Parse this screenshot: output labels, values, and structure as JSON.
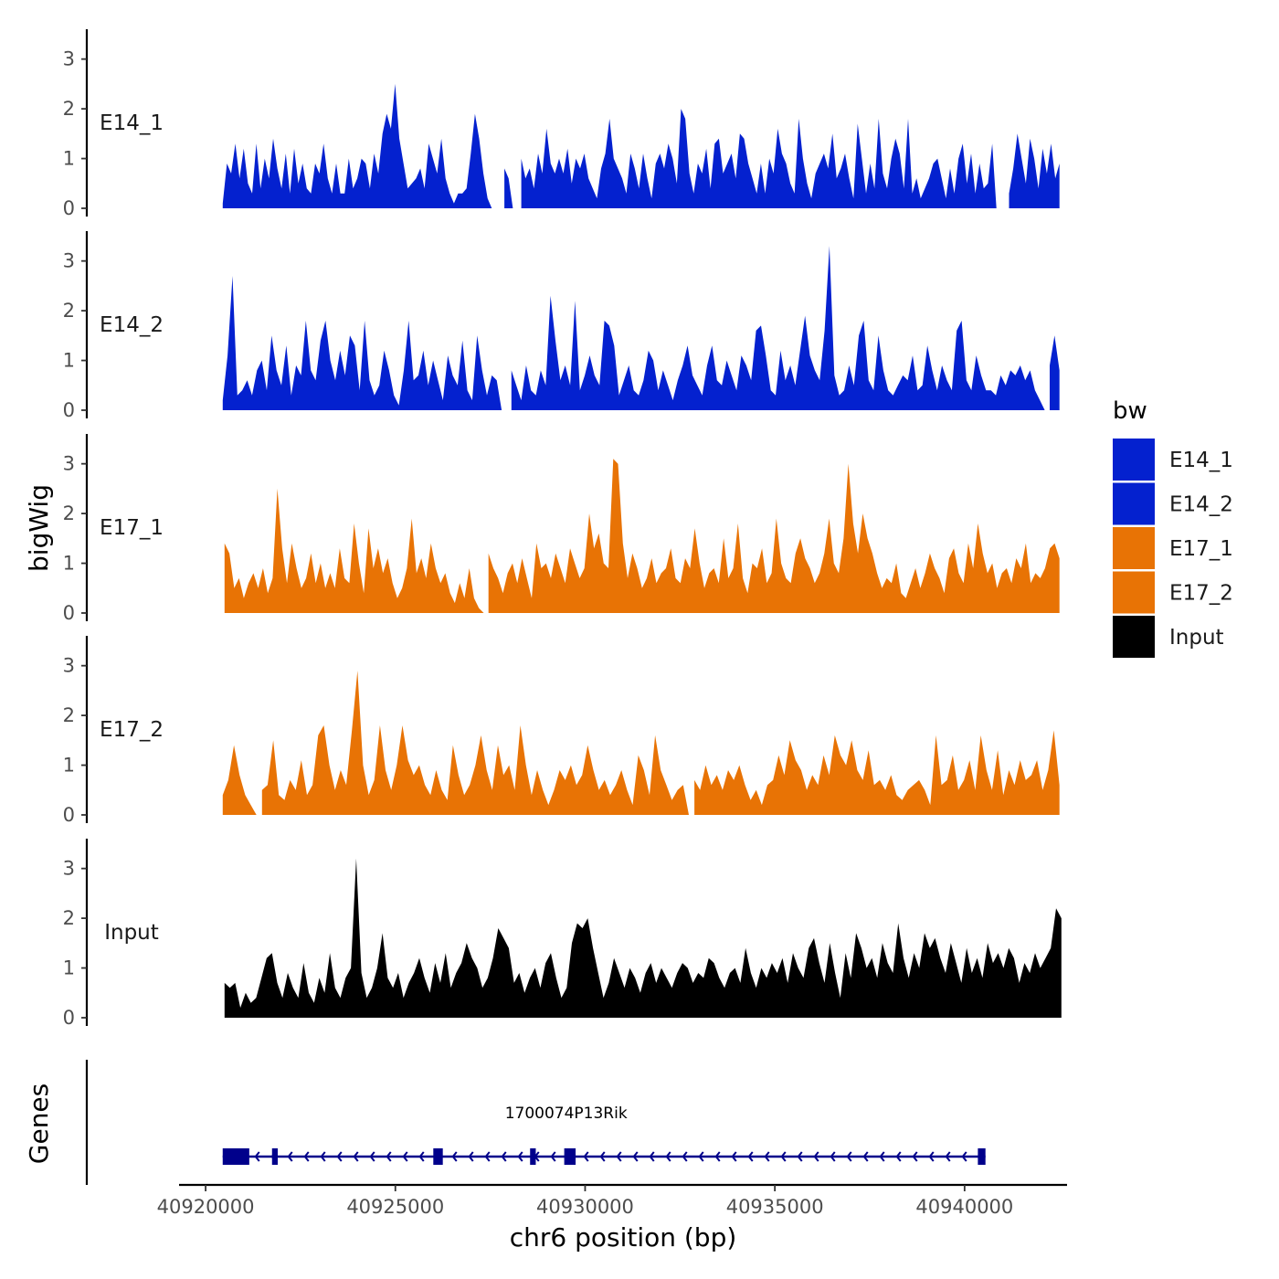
{
  "chart_data": {
    "type": "area",
    "chromosome": "chr6",
    "xlabel": "chr6 position (bp)",
    "ylabel": "bigWig",
    "genes_label": "Genes",
    "xlim": [
      40919300,
      40942700
    ],
    "ylim": [
      0,
      3.6
    ],
    "x_ticks": [
      40920000,
      40925000,
      40930000,
      40935000,
      40940000
    ],
    "x_tick_labels": [
      "40920000",
      "40925000",
      "40930000",
      "40935000",
      "40940000"
    ],
    "y_ticks": [
      0,
      1,
      2,
      3
    ],
    "y_tick_labels": [
      "0",
      "1",
      "2",
      "3"
    ],
    "legend": {
      "title": "bw",
      "entries": [
        {
          "name": "E14_1",
          "color": "#0421cf"
        },
        {
          "name": "E14_2",
          "color": "#0421cf"
        },
        {
          "name": "E17_1",
          "color": "#e87305"
        },
        {
          "name": "E17_2",
          "color": "#e87305"
        },
        {
          "name": "Input",
          "color": "#000000"
        }
      ]
    },
    "series": [
      {
        "name": "E14_1",
        "color": "#0421cf",
        "x_start": 40920450,
        "x_end": 40942500,
        "values": [
          0.1,
          0.9,
          0.7,
          1.3,
          0.6,
          1.2,
          0.5,
          0.3,
          1.3,
          0.4,
          1.0,
          0.6,
          1.4,
          0.8,
          0.4,
          1.1,
          0.3,
          1.2,
          0.5,
          0.9,
          0.4,
          0.3,
          0.9,
          0.7,
          1.3,
          0.6,
          0.3,
          0.9,
          0.3,
          0.3,
          1.0,
          0.4,
          0.6,
          1.0,
          0.9,
          0.4,
          1.1,
          0.7,
          1.5,
          1.9,
          1.6,
          2.5,
          1.4,
          0.9,
          0.4,
          0.5,
          0.6,
          0.8,
          0.4,
          1.3,
          1.0,
          0.7,
          1.4,
          0.6,
          0.3,
          0.1,
          0.3,
          0.3,
          0.4,
          1.1,
          1.9,
          1.4,
          0.7,
          0.2,
          0,
          0,
          0,
          0.8,
          0.6,
          0,
          0,
          1.0,
          0.6,
          0.8,
          0.4,
          1.1,
          0.7,
          1.6,
          0.9,
          0.7,
          1.0,
          0.7,
          1.2,
          0.5,
          1.0,
          0.8,
          1.1,
          0.6,
          0.4,
          0.2,
          0.8,
          1.1,
          1.8,
          1.0,
          0.8,
          0.6,
          0.3,
          1.1,
          0.8,
          0.4,
          1.1,
          0.6,
          0.2,
          0.9,
          1.1,
          0.8,
          1.3,
          1.0,
          0.5,
          2.0,
          1.8,
          0.7,
          0.3,
          0.9,
          0.7,
          1.2,
          0.4,
          1.3,
          1.4,
          0.7,
          0.9,
          1.1,
          0.6,
          1.5,
          1.4,
          0.9,
          0.6,
          0.3,
          0.9,
          0.3,
          1.0,
          0.7,
          1.6,
          1.1,
          0.9,
          0.5,
          0.3,
          1.8,
          1.0,
          0.5,
          0.2,
          0.7,
          0.9,
          1.1,
          0.8,
          1.5,
          0.6,
          0.8,
          1.1,
          0.6,
          0.2,
          1.7,
          1.0,
          0.3,
          0.9,
          0.4,
          1.8,
          0.7,
          0.4,
          1.0,
          1.4,
          1.1,
          0.4,
          1.8,
          0.3,
          0.6,
          0.2,
          0.4,
          0.6,
          0.9,
          1.0,
          0.6,
          0.2,
          0.8,
          0.3,
          1.0,
          1.3,
          0.5,
          1.1,
          0.3,
          0.9,
          0.4,
          0.5,
          1.3,
          0,
          0,
          0,
          0.3,
          0.8,
          1.5,
          1.0,
          0.5,
          1.4,
          1.0,
          0.4,
          1.2,
          0.7,
          1.3,
          0.6,
          0.9
        ]
      },
      {
        "name": "E14_2",
        "color": "#0421cf",
        "x_start": 40920450,
        "x_end": 40942500,
        "values": [
          0.2,
          1.1,
          2.7,
          0.3,
          0.4,
          0.6,
          0.3,
          0.8,
          1.0,
          0.4,
          1.5,
          0.8,
          0.5,
          1.3,
          0.3,
          0.9,
          0.7,
          1.8,
          0.8,
          0.6,
          1.4,
          1.8,
          1.0,
          0.6,
          1.2,
          0.7,
          1.5,
          1.3,
          0.4,
          1.8,
          0.6,
          0.3,
          0.5,
          1.2,
          0.8,
          0.3,
          0.1,
          0.8,
          1.8,
          0.6,
          0.7,
          1.2,
          0.5,
          1.0,
          0.6,
          0.2,
          1.1,
          0.7,
          0.5,
          1.4,
          0.4,
          0.2,
          1.5,
          0.8,
          0.3,
          0.7,
          0.6,
          0,
          0,
          0.8,
          0.5,
          0.2,
          0.9,
          0.4,
          0.3,
          0.8,
          0.5,
          2.3,
          1.4,
          0.6,
          0.9,
          0.5,
          2.2,
          0.4,
          0.7,
          1.1,
          0.7,
          0.5,
          1.8,
          1.7,
          1.3,
          0.3,
          0.6,
          0.9,
          0.4,
          0.3,
          0.6,
          1.2,
          1.0,
          0.4,
          0.8,
          0.5,
          0.2,
          0.6,
          0.9,
          1.3,
          0.7,
          0.5,
          0.3,
          0.9,
          1.3,
          0.6,
          0.5,
          1.0,
          0.7,
          0.4,
          1.1,
          0.9,
          0.6,
          1.6,
          1.7,
          1.1,
          0.4,
          0.3,
          1.2,
          0.6,
          0.9,
          0.5,
          1.2,
          1.9,
          1.1,
          0.8,
          0.6,
          1.6,
          3.3,
          0.7,
          0.3,
          0.4,
          0.9,
          0.5,
          1.5,
          1.8,
          0.6,
          0.4,
          1.5,
          0.8,
          0.4,
          0.3,
          0.5,
          0.7,
          0.6,
          1.1,
          0.4,
          0.5,
          1.3,
          0.8,
          0.4,
          0.9,
          0.6,
          0.4,
          1.6,
          1.8,
          0.6,
          0.4,
          1.1,
          0.7,
          0.4,
          0.4,
          0.3,
          0.7,
          0.5,
          0.8,
          0.7,
          0.9,
          0.6,
          0.8,
          0.4,
          0.2,
          0,
          0.9,
          1.5,
          0.8
        ]
      },
      {
        "name": "E17_1",
        "color": "#e87305",
        "x_start": 40920500,
        "x_end": 40942500,
        "values": [
          1.4,
          1.2,
          0.5,
          0.7,
          0.3,
          0.6,
          0.8,
          0.5,
          0.9,
          0.4,
          0.7,
          2.5,
          1.3,
          0.6,
          1.4,
          0.9,
          0.5,
          0.7,
          1.2,
          0.6,
          1.0,
          0.5,
          0.8,
          0.5,
          1.3,
          0.7,
          0.6,
          1.8,
          1.0,
          0.4,
          1.7,
          0.9,
          1.3,
          0.8,
          1.1,
          0.6,
          0.3,
          0.5,
          0.9,
          1.9,
          0.8,
          1.1,
          0.7,
          1.4,
          0.9,
          0.6,
          0.8,
          0.4,
          0.2,
          0.6,
          0.3,
          0.9,
          0.3,
          0.1,
          0,
          1.2,
          0.9,
          0.7,
          0.4,
          0.8,
          1.0,
          0.6,
          1.1,
          0.7,
          0.3,
          1.4,
          0.9,
          1.0,
          0.7,
          1.2,
          0.9,
          0.6,
          1.3,
          1.0,
          0.7,
          0.9,
          2.0,
          1.3,
          1.6,
          1.0,
          0.9,
          3.1,
          3.0,
          1.4,
          0.7,
          1.2,
          0.9,
          0.5,
          0.7,
          1.1,
          0.6,
          0.8,
          0.9,
          1.3,
          0.7,
          0.6,
          1.1,
          0.9,
          1.7,
          1.0,
          0.5,
          0.8,
          0.9,
          0.6,
          1.5,
          0.7,
          0.9,
          1.8,
          0.7,
          0.4,
          1.0,
          0.9,
          1.3,
          0.6,
          0.8,
          1.9,
          1.0,
          0.7,
          0.6,
          1.2,
          1.5,
          1.1,
          0.9,
          0.6,
          0.8,
          1.2,
          1.9,
          1.0,
          0.8,
          1.5,
          3.0,
          1.8,
          1.2,
          2.0,
          1.5,
          1.2,
          0.8,
          0.5,
          0.7,
          0.6,
          1.0,
          0.4,
          0.3,
          0.6,
          0.9,
          0.5,
          0.8,
          1.2,
          0.9,
          0.7,
          0.4,
          1.1,
          1.3,
          0.8,
          0.6,
          1.4,
          0.9,
          1.8,
          1.2,
          0.8,
          1.0,
          0.5,
          0.8,
          0.9,
          0.6,
          1.1,
          0.9,
          1.4,
          0.6,
          0.8,
          0.7,
          0.9,
          1.3,
          1.4,
          1.1
        ]
      },
      {
        "name": "E17_2",
        "color": "#e87305",
        "x_start": 40920450,
        "x_end": 40942500,
        "values": [
          0.4,
          0.7,
          1.4,
          0.8,
          0.4,
          0.2,
          0,
          0.5,
          0.6,
          1.5,
          0.4,
          0.3,
          0.7,
          0.5,
          1.1,
          0.4,
          0.6,
          1.6,
          1.8,
          1.0,
          0.5,
          0.9,
          0.6,
          1.7,
          2.9,
          1.0,
          0.4,
          0.7,
          1.8,
          0.9,
          0.5,
          1.0,
          1.8,
          1.1,
          0.8,
          1.0,
          0.6,
          0.4,
          0.9,
          0.5,
          0.3,
          1.4,
          0.8,
          0.4,
          0.6,
          1.0,
          1.6,
          0.9,
          0.5,
          1.4,
          0.8,
          1.0,
          0.5,
          1.8,
          1.0,
          0.4,
          0.9,
          0.5,
          0.2,
          0.5,
          0.9,
          0.7,
          1.0,
          0.6,
          0.8,
          1.4,
          0.9,
          0.5,
          0.7,
          0.4,
          0.6,
          0.9,
          0.5,
          0.2,
          1.2,
          0.9,
          0.4,
          1.6,
          0.9,
          0.6,
          0.3,
          0.5,
          0.6,
          0,
          0.7,
          0.5,
          1.0,
          0.6,
          0.8,
          0.5,
          0.9,
          0.7,
          1.0,
          0.6,
          0.3,
          0.5,
          0.2,
          0.6,
          0.7,
          1.2,
          0.8,
          1.5,
          1.1,
          0.9,
          0.5,
          0.8,
          0.6,
          1.2,
          0.8,
          1.6,
          1.2,
          1.0,
          1.5,
          0.9,
          0.7,
          1.3,
          0.6,
          0.7,
          0.5,
          0.8,
          0.4,
          0.3,
          0.5,
          0.6,
          0.7,
          0.5,
          0.2,
          1.6,
          0.6,
          0.7,
          1.2,
          0.5,
          0.7,
          1.1,
          0.5,
          1.6,
          0.9,
          0.5,
          1.3,
          0.4,
          0.9,
          0.6,
          1.1,
          0.7,
          0.8,
          1.1,
          0.5,
          0.9,
          1.7,
          0.6
        ]
      },
      {
        "name": "Input",
        "color": "#000000",
        "x_start": 40920500,
        "x_end": 40942550,
        "values": [
          0.7,
          0.6,
          0.7,
          0.2,
          0.5,
          0.3,
          0.4,
          0.8,
          1.2,
          1.3,
          0.7,
          0.4,
          0.9,
          0.6,
          0.4,
          1.1,
          0.5,
          0.3,
          0.8,
          0.5,
          1.3,
          0.6,
          0.4,
          0.8,
          1.0,
          3.2,
          0.9,
          0.4,
          0.6,
          1.0,
          1.7,
          0.8,
          0.6,
          0.9,
          0.4,
          0.7,
          0.9,
          1.2,
          0.8,
          0.5,
          1.1,
          0.7,
          1.3,
          0.6,
          0.9,
          1.1,
          1.5,
          1.2,
          1.0,
          0.6,
          0.8,
          1.2,
          1.8,
          1.6,
          1.4,
          0.7,
          0.9,
          0.5,
          0.8,
          1.0,
          0.6,
          1.1,
          1.3,
          0.8,
          0.4,
          0.6,
          1.5,
          1.9,
          1.8,
          2.0,
          1.4,
          0.9,
          0.4,
          0.7,
          1.2,
          0.9,
          0.6,
          1.0,
          0.8,
          0.5,
          0.9,
          1.1,
          0.7,
          1.0,
          0.8,
          0.6,
          0.9,
          1.1,
          1.0,
          0.7,
          0.9,
          0.8,
          1.2,
          1.1,
          0.8,
          0.6,
          0.9,
          1.0,
          0.7,
          1.4,
          0.9,
          0.6,
          1.0,
          0.8,
          1.1,
          0.9,
          1.2,
          0.7,
          1.3,
          1.0,
          0.8,
          1.4,
          1.6,
          1.1,
          0.7,
          1.5,
          0.9,
          0.4,
          1.3,
          0.8,
          1.7,
          1.4,
          1.0,
          1.2,
          0.8,
          1.5,
          1.1,
          0.9,
          1.9,
          1.2,
          0.8,
          1.3,
          1.0,
          1.7,
          1.4,
          1.6,
          1.2,
          0.9,
          1.5,
          1.1,
          0.7,
          1.4,
          0.9,
          1.2,
          0.8,
          1.5,
          1.1,
          1.3,
          1.0,
          1.4,
          1.2,
          0.7,
          1.1,
          0.9,
          1.3,
          1.0,
          1.2,
          1.4,
          2.2,
          2.0
        ]
      }
    ],
    "genes": [
      {
        "name": "1700074P13Rik",
        "strand": "-",
        "color": "#00008b",
        "start": 40920450,
        "end": 40940550,
        "exons": [
          [
            40920450,
            40921150
          ],
          [
            40921750,
            40921900
          ],
          [
            40926000,
            40926250
          ],
          [
            40928550,
            40928700
          ],
          [
            40929450,
            40929750
          ],
          [
            40940350,
            40940550
          ]
        ]
      }
    ]
  }
}
